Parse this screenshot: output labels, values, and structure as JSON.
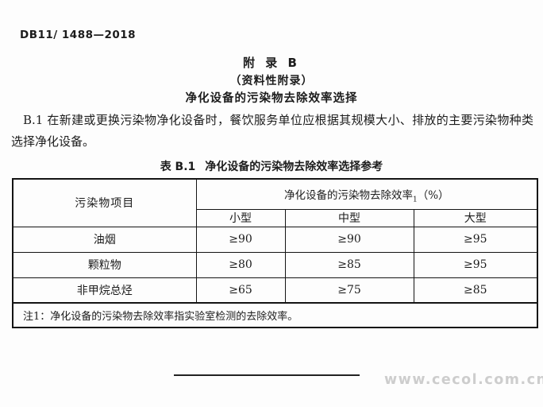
{
  "doc": {
    "code": "DB11/ 1488—2018"
  },
  "appendix": {
    "title": "附 录 B",
    "subtitle": "（资料性附录）",
    "heading": "净化设备的污染物去除效率选择"
  },
  "clause": {
    "text": "B.1 在新建或更换污染物净化设备时，餐饮服务单位应根据其规模大小、排放的主要污染物种类选择净化设备。"
  },
  "table": {
    "caption_label": "表 B.1",
    "caption_title": "净化设备的污染物去除效率选择参考",
    "col_header_left": "污染物项目",
    "group_header": {
      "label": "净化设备的污染物去除效率",
      "footnote_marker": "1",
      "unit": "（%）"
    },
    "size_columns": [
      "小型",
      "中型",
      "大型"
    ],
    "rows": [
      {
        "pollutant": "油烟",
        "small": "≥90",
        "medium": "≥90",
        "large": "≥95"
      },
      {
        "pollutant": "颗粒物",
        "small": "≥80",
        "medium": "≥85",
        "large": "≥95"
      },
      {
        "pollutant": "非甲烷总烃",
        "small": "≥65",
        "medium": "≥75",
        "large": "≥85"
      }
    ],
    "note": "注1：净化设备的污染物去除效率指实验室检测的去除效率。"
  },
  "footer": {
    "watermark": "www.cecol.com.cn"
  },
  "colors": {
    "text": "#1c1c1c",
    "border": "#141414",
    "watermark": "#cdcdcd",
    "page_bg": "#fdfdfd"
  }
}
